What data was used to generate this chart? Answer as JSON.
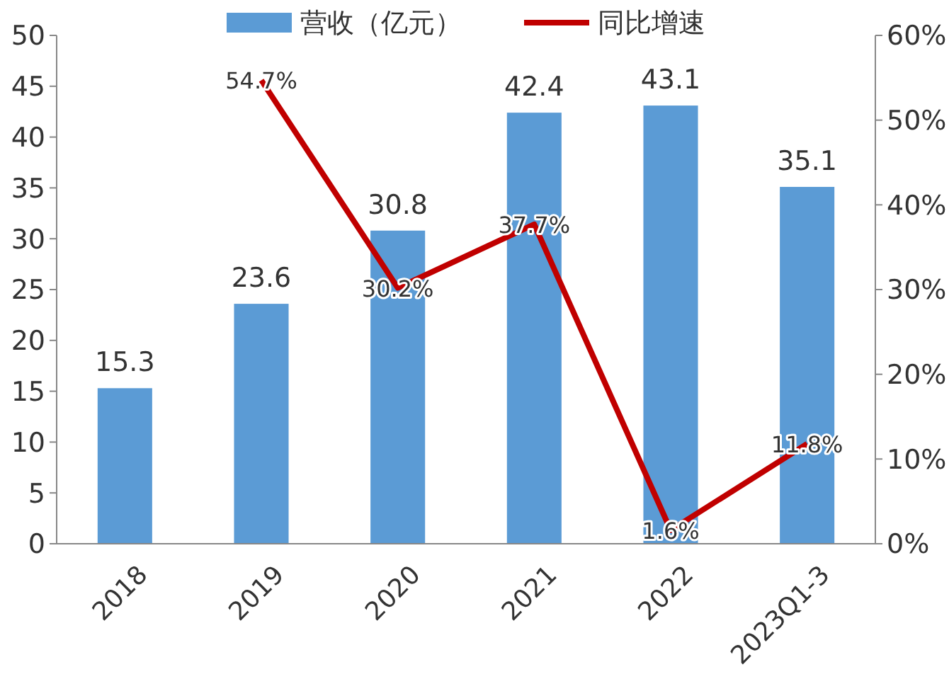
{
  "chart_data": {
    "type": "bar",
    "categories": [
      "2018",
      "2019",
      "2020",
      "2021",
      "2022",
      "2023Q1-3"
    ],
    "series": [
      {
        "name": "营收（亿元）",
        "color": "#5b9bd5",
        "values": [
          15.3,
          23.6,
          30.8,
          42.4,
          43.1,
          35.1
        ],
        "value_labels": [
          "15.3",
          "23.6",
          "30.8",
          "42.4",
          "43.1",
          "35.1"
        ]
      },
      {
        "name": "同比增速",
        "type": "line",
        "axis": "y2",
        "color": "#c00000",
        "values": [
          null,
          54.7,
          30.2,
          37.7,
          1.6,
          11.8
        ],
        "value_labels": [
          null,
          "54.7%",
          "30.2%",
          "37.7%",
          "1.6%",
          "11.8%"
        ]
      }
    ],
    "ylim": [
      0,
      50
    ],
    "yticks": [
      0,
      5,
      10,
      15,
      20,
      25,
      30,
      35,
      40,
      45,
      50
    ],
    "y2lim": [
      0,
      60
    ],
    "y2ticks": [
      {
        "value": 0,
        "label": "0%"
      },
      {
        "value": 10,
        "label": "10%"
      },
      {
        "value": 20,
        "label": "20%"
      },
      {
        "value": 30,
        "label": "30%"
      },
      {
        "value": 40,
        "label": "40%"
      },
      {
        "value": 50,
        "label": "50%"
      },
      {
        "value": 60,
        "label": "60%"
      }
    ],
    "legend": "top",
    "grid": false,
    "marker": "none",
    "line_style": "solid"
  }
}
